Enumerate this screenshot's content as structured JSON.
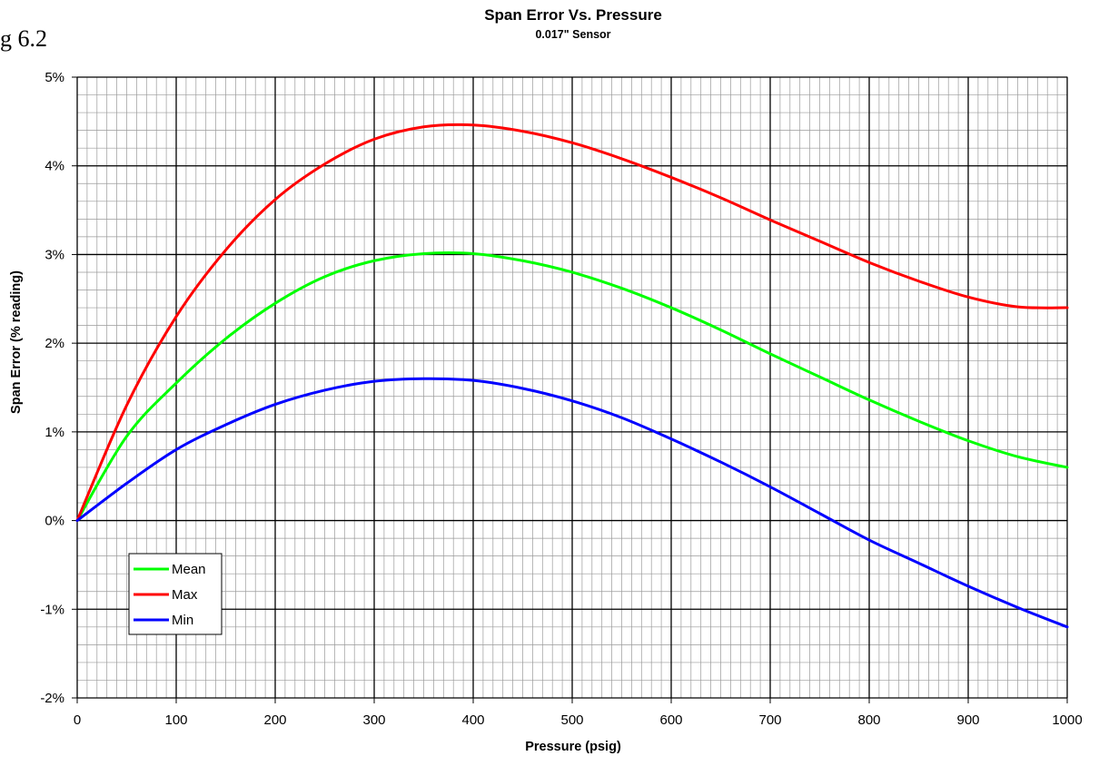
{
  "figure_label": "g 6.2",
  "chart_data": {
    "type": "line",
    "title": "Span Error Vs. Pressure",
    "subtitle": "0.017\" Sensor",
    "xlabel": "Pressure (psig)",
    "ylabel": "Span Error (% reading)",
    "xlim": [
      0,
      1000
    ],
    "ylim": [
      -2,
      5
    ],
    "x_ticks": [
      0,
      100,
      200,
      300,
      400,
      500,
      600,
      700,
      800,
      900,
      1000
    ],
    "y_ticks": [
      -2,
      -1,
      0,
      1,
      2,
      3,
      4,
      5
    ],
    "y_tick_labels": [
      "-2%",
      "-1%",
      "0%",
      "1%",
      "2%",
      "3%",
      "4%",
      "5%"
    ],
    "grid": true,
    "legend_position": "bottom-left",
    "x": [
      0,
      50,
      100,
      150,
      200,
      250,
      300,
      350,
      400,
      450,
      500,
      550,
      600,
      650,
      700,
      750,
      800,
      850,
      900,
      950,
      1000
    ],
    "series": [
      {
        "name": "Mean",
        "color": "#00ff00",
        "values": [
          0,
          0.95,
          1.55,
          2.05,
          2.45,
          2.75,
          2.93,
          3.01,
          3.01,
          2.93,
          2.8,
          2.62,
          2.4,
          2.15,
          1.88,
          1.62,
          1.36,
          1.12,
          0.9,
          0.72,
          0.6
        ]
      },
      {
        "name": "Max",
        "color": "#ff0000",
        "values": [
          0,
          1.3,
          2.3,
          3.05,
          3.62,
          4.02,
          4.3,
          4.44,
          4.46,
          4.39,
          4.26,
          4.08,
          3.87,
          3.64,
          3.39,
          3.15,
          2.91,
          2.7,
          2.52,
          2.41,
          2.4
        ]
      },
      {
        "name": "Min",
        "color": "#0000ff",
        "values": [
          0,
          0.42,
          0.8,
          1.08,
          1.31,
          1.47,
          1.57,
          1.6,
          1.58,
          1.49,
          1.35,
          1.16,
          0.92,
          0.66,
          0.38,
          0.08,
          -0.22,
          -0.48,
          -0.74,
          -0.98,
          -1.2
        ]
      }
    ]
  }
}
